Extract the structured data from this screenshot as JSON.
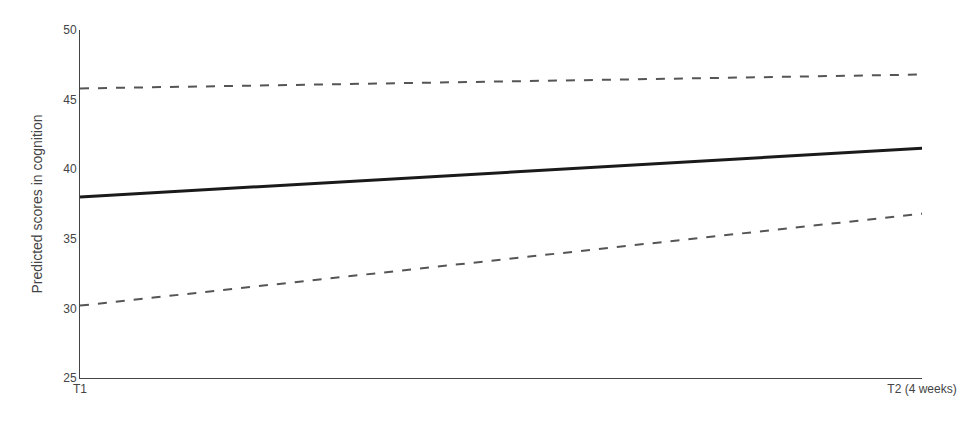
{
  "chart_data": {
    "type": "line",
    "categories": [
      "T1",
      "T2 (4 weeks)"
    ],
    "ylabel": "Predicted scores in cognition",
    "ylim": [
      25,
      50
    ],
    "yticks": [
      25,
      30,
      35,
      40,
      45,
      50
    ],
    "grid": false,
    "series": [
      {
        "color": "#1a1a1a",
        "line_style": "solid",
        "values": [
          38.0,
          41.5
        ]
      },
      {
        "color": "#555555",
        "line_style": "dashed",
        "values": [
          45.8,
          46.8
        ]
      },
      {
        "color": "#555555",
        "line_style": "dashed",
        "values": [
          30.2,
          36.8
        ]
      }
    ]
  }
}
